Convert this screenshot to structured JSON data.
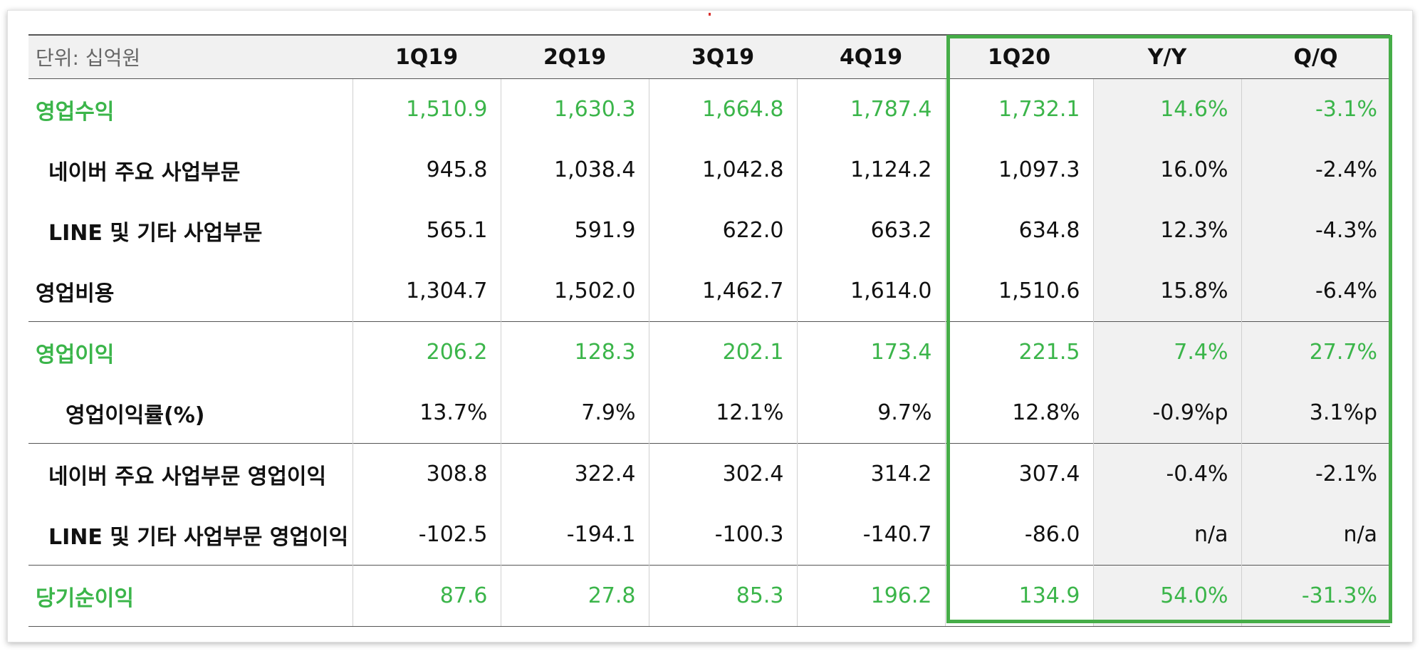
{
  "table": {
    "unit_label": "단위: 십억원",
    "columns": [
      "1Q19",
      "2Q19",
      "3Q19",
      "4Q19",
      "1Q20",
      "Y/Y",
      "Q/Q"
    ],
    "rows": [
      {
        "label": "영업수익",
        "values": [
          "1,510.9",
          "1,630.3",
          "1,664.8",
          "1,787.4",
          "1,732.1",
          "14.6%",
          "-3.1%"
        ]
      },
      {
        "label": "네이버 주요 사업부문",
        "values": [
          "945.8",
          "1,038.4",
          "1,042.8",
          "1,124.2",
          "1,097.3",
          "16.0%",
          "-2.4%"
        ]
      },
      {
        "label": "LINE 및 기타 사업부문",
        "values": [
          "565.1",
          "591.9",
          "622.0",
          "663.2",
          "634.8",
          "12.3%",
          "-4.3%"
        ]
      },
      {
        "label": "영업비용",
        "values": [
          "1,304.7",
          "1,502.0",
          "1,462.7",
          "1,614.0",
          "1,510.6",
          "15.8%",
          "-6.4%"
        ]
      },
      {
        "label": "영업이익",
        "values": [
          "206.2",
          "128.3",
          "202.1",
          "173.4",
          "221.5",
          "7.4%",
          "27.7%"
        ]
      },
      {
        "label": "영업이익률(%)",
        "values": [
          "13.7%",
          "7.9%",
          "12.1%",
          "9.7%",
          "12.8%",
          "-0.9%p",
          "3.1%p"
        ]
      },
      {
        "label": "네이버 주요 사업부문 영업이익",
        "values": [
          "308.8",
          "322.4",
          "302.4",
          "314.2",
          "307.4",
          "-0.4%",
          "-2.1%"
        ]
      },
      {
        "label": "LINE 및 기타 사업부문 영업이익",
        "values": [
          "-102.5",
          "-194.1",
          "-100.3",
          "-140.7",
          "-86.0",
          "n/a",
          "n/a"
        ]
      },
      {
        "label": "당기순이익",
        "values": [
          "87.6",
          "27.8",
          "85.3",
          "196.2",
          "134.9",
          "54.0%",
          "-31.3%"
        ]
      }
    ]
  },
  "colors": {
    "accent_green": "#3bb54a",
    "highlight_border": "#46ad48",
    "header_bg": "#f1f1f1"
  }
}
